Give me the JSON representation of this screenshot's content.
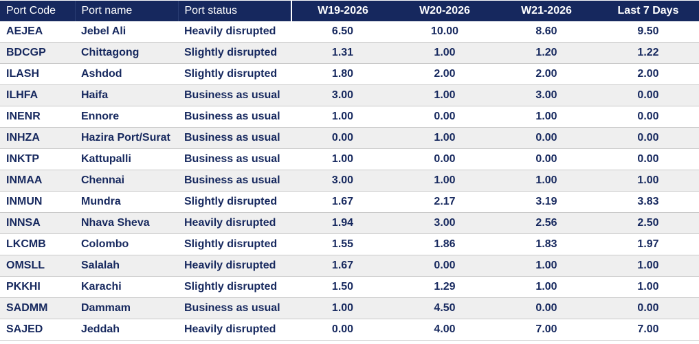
{
  "table": {
    "headers": {
      "port_code": "Port Code",
      "port_name": "Port name",
      "port_status": "Port status",
      "w19": "W19-2026",
      "w20": "W20-2026",
      "w21": "W21-2026",
      "last_7_days": "Last 7 Days"
    },
    "rows": [
      {
        "code": "AEJEA",
        "name": "Jebel Ali",
        "status": "Heavily disrupted",
        "w19": "6.50",
        "w20": "10.00",
        "w21": "8.60",
        "last7": "9.50"
      },
      {
        "code": "BDCGP",
        "name": "Chittagong",
        "status": "Slightly disrupted",
        "w19": "1.31",
        "w20": "1.00",
        "w21": "1.20",
        "last7": "1.22"
      },
      {
        "code": "ILASH",
        "name": "Ashdod",
        "status": "Slightly disrupted",
        "w19": "1.80",
        "w20": "2.00",
        "w21": "2.00",
        "last7": "2.00"
      },
      {
        "code": "ILHFA",
        "name": "Haifa",
        "status": "Business as usual",
        "w19": "3.00",
        "w20": "1.00",
        "w21": "3.00",
        "last7": "0.00"
      },
      {
        "code": "INENR",
        "name": "Ennore",
        "status": "Business as usual",
        "w19": "1.00",
        "w20": "0.00",
        "w21": "1.00",
        "last7": "0.00"
      },
      {
        "code": "INHZA",
        "name": "Hazira Port/Surat",
        "status": "Business as usual",
        "w19": "0.00",
        "w20": "1.00",
        "w21": "0.00",
        "last7": "0.00"
      },
      {
        "code": "INKTP",
        "name": "Kattupalli",
        "status": "Business as usual",
        "w19": "1.00",
        "w20": "0.00",
        "w21": "0.00",
        "last7": "0.00"
      },
      {
        "code": "INMAA",
        "name": "Chennai",
        "status": "Business as usual",
        "w19": "3.00",
        "w20": "1.00",
        "w21": "1.00",
        "last7": "1.00"
      },
      {
        "code": "INMUN",
        "name": "Mundra",
        "status": "Slightly disrupted",
        "w19": "1.67",
        "w20": "2.17",
        "w21": "3.19",
        "last7": "3.83"
      },
      {
        "code": "INNSA",
        "name": "Nhava Sheva",
        "status": "Heavily disrupted",
        "w19": "1.94",
        "w20": "3.00",
        "w21": "2.56",
        "last7": "2.50"
      },
      {
        "code": "LKCMB",
        "name": "Colombo",
        "status": "Slightly disrupted",
        "w19": "1.55",
        "w20": "1.86",
        "w21": "1.83",
        "last7": "1.97"
      },
      {
        "code": "OMSLL",
        "name": "Salalah",
        "status": "Heavily disrupted",
        "w19": "1.67",
        "w20": "0.00",
        "w21": "1.00",
        "last7": "1.00"
      },
      {
        "code": "PKKHI",
        "name": "Karachi",
        "status": "Slightly disrupted",
        "w19": "1.50",
        "w20": "1.29",
        "w21": "1.00",
        "last7": "1.00"
      },
      {
        "code": "SADMM",
        "name": "Dammam",
        "status": "Business as usual",
        "w19": "1.00",
        "w20": "4.50",
        "w21": "0.00",
        "last7": "0.00"
      },
      {
        "code": "SAJED",
        "name": "Jeddah",
        "status": "Heavily disrupted",
        "w19": "0.00",
        "w20": "4.00",
        "w21": "7.00",
        "last7": "7.00"
      }
    ]
  },
  "colors": {
    "header_background": "#16285e",
    "header_text": "#ffffff",
    "body_text": "#16285e",
    "alt_row_background": "#efefef",
    "row_divider": "#c9c9c9"
  }
}
